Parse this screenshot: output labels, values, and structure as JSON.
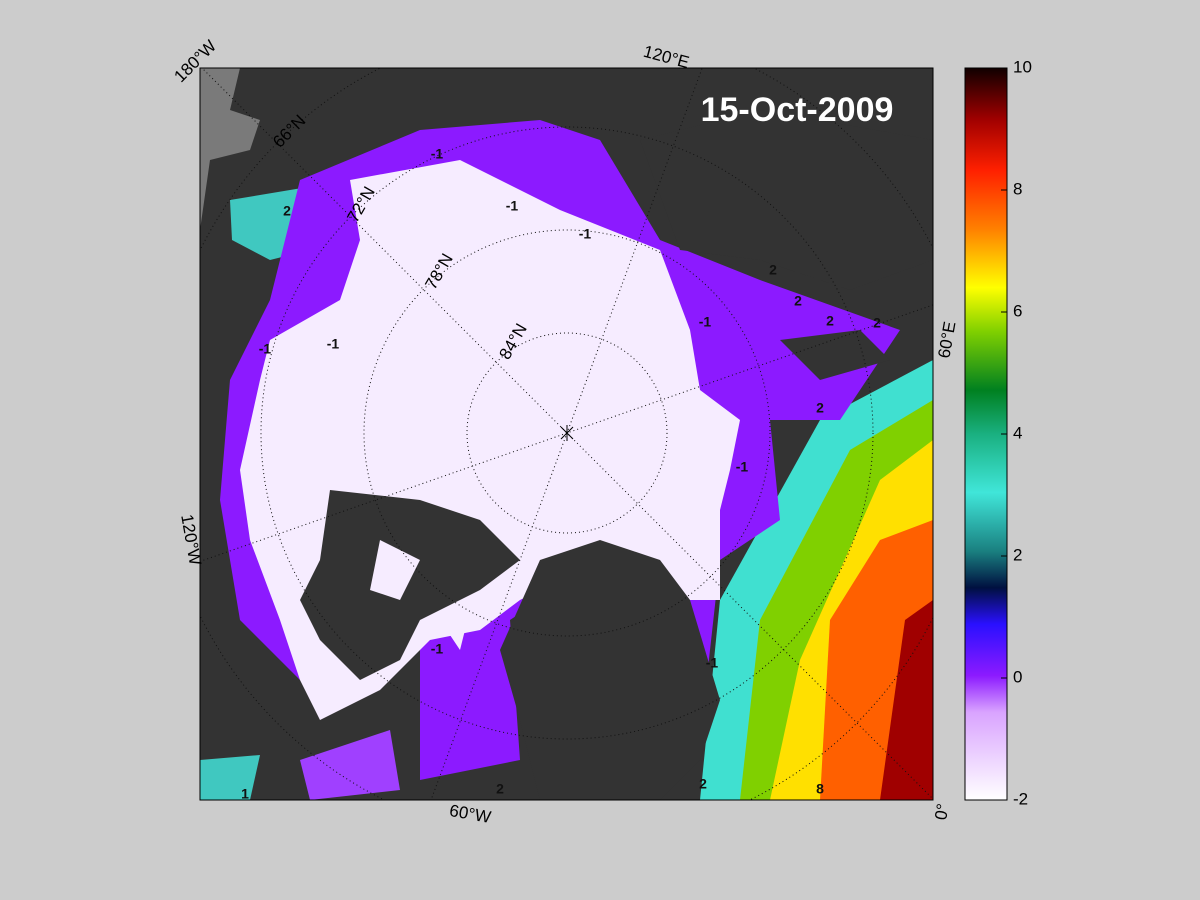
{
  "title": "15-Oct-2009",
  "map": {
    "longitude_labels": [
      "180°W",
      "120°E",
      "60°E",
      "0°",
      "60°W",
      "120°W"
    ],
    "latitude_labels": [
      "66°N",
      "72°N",
      "78°N",
      "84°N"
    ],
    "contour_labels": [
      "-1",
      "-1",
      "-1",
      "-1",
      "-1",
      "-1",
      "-1",
      "-1",
      "-1",
      "2",
      "2",
      "2",
      "2",
      "2",
      "2",
      "2",
      "2",
      "1",
      "8"
    ]
  },
  "colorbar": {
    "range": [
      -2,
      10
    ],
    "ticks": [
      -2,
      0,
      2,
      4,
      6,
      8,
      10
    ]
  }
}
